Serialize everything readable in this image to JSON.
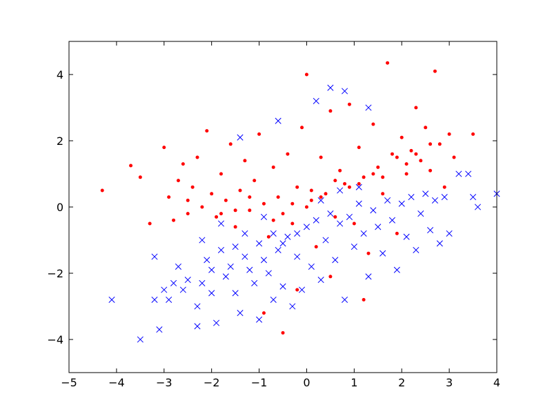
{
  "chart_data": {
    "type": "scatter",
    "title": "",
    "xlabel": "",
    "ylabel": "",
    "xlim": [
      -5,
      4
    ],
    "ylim": [
      -5,
      5
    ],
    "x_ticks": [
      -5,
      -4,
      -3,
      -2,
      -1,
      0,
      1,
      2,
      3,
      4
    ],
    "x_tick_labels": [
      "−5",
      "−4",
      "−3",
      "−2",
      "−1",
      "0",
      "1",
      "2",
      "3",
      "4"
    ],
    "y_ticks": [
      -4,
      -2,
      0,
      2,
      4
    ],
    "y_tick_labels": [
      "−4",
      "−2",
      "0",
      "2",
      "4"
    ],
    "grid": false,
    "legend": "none",
    "series": [
      {
        "marker": "x",
        "color": "#0000ff",
        "points": [
          [
            -4.1,
            -2.8
          ],
          [
            -3.5,
            -4.0
          ],
          [
            -3.1,
            -3.7
          ],
          [
            -3.2,
            -1.5
          ],
          [
            -3.2,
            -2.8
          ],
          [
            -3.0,
            -2.5
          ],
          [
            -2.9,
            -2.8
          ],
          [
            -2.8,
            -2.3
          ],
          [
            -2.7,
            -1.8
          ],
          [
            -2.6,
            -2.5
          ],
          [
            -2.5,
            -2.2
          ],
          [
            -2.3,
            -3.6
          ],
          [
            -2.3,
            -3.0
          ],
          [
            -2.2,
            -2.3
          ],
          [
            -2.1,
            -1.6
          ],
          [
            -2.0,
            -1.9
          ],
          [
            -2.0,
            -2.6
          ],
          [
            -1.9,
            -3.5
          ],
          [
            -1.8,
            -1.3
          ],
          [
            -1.7,
            -2.1
          ],
          [
            -1.6,
            -1.8
          ],
          [
            -1.5,
            -2.6
          ],
          [
            -1.5,
            -1.2
          ],
          [
            -1.4,
            -3.2
          ],
          [
            -1.3,
            -1.5
          ],
          [
            -1.2,
            -1.9
          ],
          [
            -1.1,
            -2.3
          ],
          [
            -1.0,
            -1.1
          ],
          [
            -1.0,
            -3.4
          ],
          [
            -0.9,
            -1.6
          ],
          [
            -0.8,
            -2.0
          ],
          [
            -0.7,
            -0.8
          ],
          [
            -0.7,
            -2.8
          ],
          [
            -0.6,
            -1.3
          ],
          [
            -0.5,
            -2.4
          ],
          [
            -0.4,
            -0.9
          ],
          [
            -0.3,
            -3.0
          ],
          [
            -0.2,
            -1.5
          ],
          [
            -0.1,
            -2.5
          ],
          [
            0.0,
            -0.6
          ],
          [
            0.1,
            -1.8
          ],
          [
            0.2,
            -0.4
          ],
          [
            0.3,
            -2.2
          ],
          [
            0.4,
            -1.0
          ],
          [
            0.5,
            -0.2
          ],
          [
            0.6,
            -1.6
          ],
          [
            0.7,
            -0.5
          ],
          [
            0.8,
            -2.8
          ],
          [
            0.9,
            -0.3
          ],
          [
            1.0,
            -1.2
          ],
          [
            1.1,
            0.1
          ],
          [
            1.2,
            -0.8
          ],
          [
            1.3,
            -2.1
          ],
          [
            1.4,
            -0.1
          ],
          [
            1.5,
            -0.6
          ],
          [
            1.6,
            -1.4
          ],
          [
            1.7,
            0.2
          ],
          [
            1.8,
            -0.4
          ],
          [
            1.9,
            -1.9
          ],
          [
            2.0,
            0.1
          ],
          [
            2.1,
            -0.9
          ],
          [
            2.2,
            0.3
          ],
          [
            2.3,
            -1.3
          ],
          [
            2.4,
            -0.2
          ],
          [
            2.5,
            0.4
          ],
          [
            2.6,
            -0.7
          ],
          [
            2.7,
            0.2
          ],
          [
            2.8,
            -1.1
          ],
          [
            2.9,
            0.3
          ],
          [
            3.0,
            -0.8
          ],
          [
            3.2,
            1.0
          ],
          [
            3.4,
            1.0
          ],
          [
            3.5,
            0.3
          ],
          [
            3.6,
            0.0
          ],
          [
            4.0,
            0.4
          ],
          [
            0.8,
            3.5
          ],
          [
            0.5,
            3.6
          ],
          [
            1.3,
            3.0
          ],
          [
            0.2,
            3.2
          ],
          [
            -0.6,
            2.6
          ],
          [
            -1.4,
            2.1
          ],
          [
            -1.8,
            -0.5
          ],
          [
            -2.2,
            -1.0
          ],
          [
            -1.3,
            -0.8
          ],
          [
            -0.9,
            -0.3
          ],
          [
            0.3,
            0.2
          ],
          [
            0.7,
            0.5
          ],
          [
            1.1,
            0.6
          ],
          [
            -0.2,
            -0.8
          ],
          [
            -0.5,
            -1.1
          ]
        ]
      },
      {
        "marker": "circle",
        "color": "#ff0000",
        "points": [
          [
            -4.3,
            0.5
          ],
          [
            -3.7,
            1.25
          ],
          [
            -3.5,
            0.9
          ],
          [
            -3.3,
            -0.5
          ],
          [
            -3.0,
            1.8
          ],
          [
            -2.9,
            0.3
          ],
          [
            -2.8,
            -0.4
          ],
          [
            -2.7,
            0.8
          ],
          [
            -2.6,
            1.3
          ],
          [
            -2.5,
            -0.2
          ],
          [
            -2.4,
            0.6
          ],
          [
            -2.3,
            1.5
          ],
          [
            -2.2,
            0.0
          ],
          [
            -2.1,
            2.3
          ],
          [
            -2.0,
            0.4
          ],
          [
            -1.9,
            -0.3
          ],
          [
            -1.8,
            1.0
          ],
          [
            -1.7,
            0.2
          ],
          [
            -1.6,
            1.9
          ],
          [
            -1.5,
            -0.6
          ],
          [
            -1.4,
            0.5
          ],
          [
            -1.3,
            1.4
          ],
          [
            -1.2,
            -0.1
          ],
          [
            -1.1,
            0.8
          ],
          [
            -1.0,
            2.2
          ],
          [
            -0.9,
            0.1
          ],
          [
            -0.8,
            -0.9
          ],
          [
            -0.7,
            1.2
          ],
          [
            -0.6,
            0.3
          ],
          [
            -0.5,
            -3.8
          ],
          [
            -0.4,
            1.6
          ],
          [
            -0.3,
            -0.5
          ],
          [
            -0.2,
            0.6
          ],
          [
            -0.1,
            2.4
          ],
          [
            0.0,
            4.0
          ],
          [
            0.1,
            0.2
          ],
          [
            0.2,
            -1.2
          ],
          [
            0.3,
            1.5
          ],
          [
            0.4,
            0.4
          ],
          [
            0.5,
            2.9
          ],
          [
            0.6,
            -0.3
          ],
          [
            0.7,
            1.1
          ],
          [
            0.8,
            0.7
          ],
          [
            0.9,
            3.1
          ],
          [
            1.0,
            -0.5
          ],
          [
            1.1,
            1.8
          ],
          [
            1.2,
            0.9
          ],
          [
            1.3,
            -1.4
          ],
          [
            1.4,
            2.5
          ],
          [
            1.5,
            1.2
          ],
          [
            1.6,
            0.4
          ],
          [
            1.7,
            4.35
          ],
          [
            1.8,
            1.6
          ],
          [
            1.9,
            -0.8
          ],
          [
            2.0,
            2.1
          ],
          [
            2.1,
            1.0
          ],
          [
            2.2,
            1.7
          ],
          [
            2.3,
            3.0
          ],
          [
            2.4,
            1.4
          ],
          [
            2.5,
            2.4
          ],
          [
            2.6,
            1.1
          ],
          [
            2.7,
            4.1
          ],
          [
            2.8,
            1.9
          ],
          [
            2.9,
            0.6
          ],
          [
            3.0,
            2.2
          ],
          [
            3.1,
            1.5
          ],
          [
            3.5,
            2.2
          ],
          [
            -0.2,
            -2.5
          ],
          [
            0.5,
            -2.1
          ],
          [
            1.2,
            -2.8
          ],
          [
            -0.9,
            -3.2
          ],
          [
            0.0,
            0.0
          ],
          [
            0.3,
            0.3
          ],
          [
            -0.5,
            -0.2
          ],
          [
            -1.5,
            -0.1
          ],
          [
            1.6,
            0.9
          ],
          [
            2.1,
            1.3
          ],
          [
            -2.5,
            0.2
          ],
          [
            0.6,
            0.8
          ],
          [
            -0.3,
            0.1
          ],
          [
            1.9,
            1.5
          ],
          [
            2.6,
            1.9
          ],
          [
            -1.2,
            0.3
          ],
          [
            0.9,
            0.6
          ],
          [
            -0.7,
            -0.4
          ],
          [
            1.4,
            1.0
          ],
          [
            2.3,
            1.6
          ],
          [
            -1.8,
            -0.2
          ],
          [
            0.1,
            0.5
          ],
          [
            1.1,
            0.7
          ]
        ]
      }
    ]
  }
}
